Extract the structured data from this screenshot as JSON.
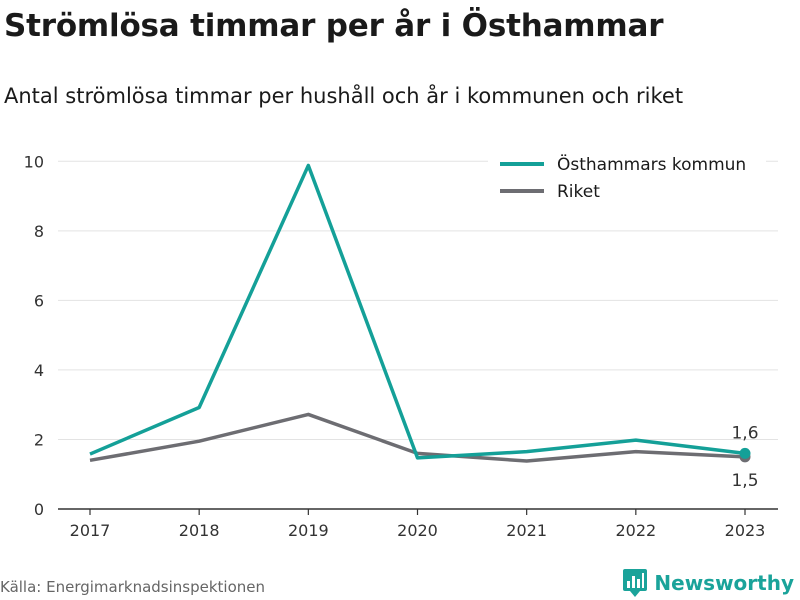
{
  "title": "Strömlösa timmar per år i Östhammar",
  "subtitle": "Antal strömlösa timmar per hushåll och år i kommunen och riket",
  "source": "Källa: Energimarknadsinspektionen",
  "brand": "Newsworthy",
  "colors": {
    "kommun": "#14a098",
    "riket": "#6d6d72",
    "grid": "#e3e3e3",
    "axis": "#333333"
  },
  "chart_data": {
    "type": "line",
    "title": "Strömlösa timmar per år i Östhammar",
    "subtitle": "Antal strömlösa timmar per hushåll och år i kommunen och riket",
    "x": [
      "2017",
      "2018",
      "2019",
      "2020",
      "2021",
      "2022",
      "2023"
    ],
    "series": [
      {
        "name": "Östhammars kommun",
        "values": [
          1.58,
          2.92,
          9.88,
          1.47,
          1.65,
          1.98,
          1.6
        ]
      },
      {
        "name": "Riket",
        "values": [
          1.4,
          1.95,
          2.72,
          1.6,
          1.38,
          1.65,
          1.5
        ]
      }
    ],
    "yticks": [
      "0",
      "2",
      "4",
      "6",
      "8",
      "10"
    ],
    "ylim": [
      0,
      10.9
    ],
    "end_labels": [
      "1,6",
      "1,5"
    ],
    "legend_position": "top-right",
    "grid": true
  }
}
